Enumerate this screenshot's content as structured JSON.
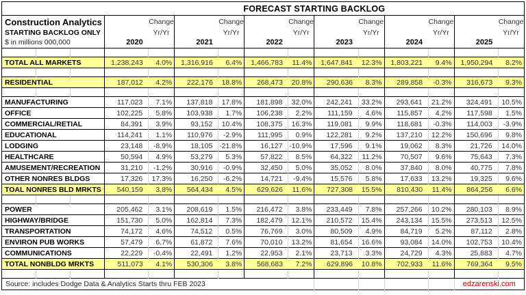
{
  "header": {
    "corner_line1": "Construction Analytics",
    "corner_line2": "STARTING BACKLOG ONLY",
    "corner_line3": "$ in millions 000,000",
    "change_label": "Change",
    "yryr_label": "Yr/Yr"
  },
  "footer": {
    "source": "Source: includes Dodge Data & Analytics Starts thru FEB 2023",
    "site": "edzarenski.com"
  },
  "colors": {
    "highlight": "#FFFF99",
    "site_text": "#C00000",
    "gridline": "#D4D4D4",
    "border": "#000000"
  },
  "chart_data": {
    "type": "table",
    "title": "FORECAST STARTING BACKLOG",
    "units": "$ in millions 000,000",
    "years": [
      "2020",
      "2021",
      "2022",
      "2023",
      "2024",
      "2025"
    ],
    "column_pattern_per_year": [
      "starting backlog",
      "Change Yr/Yr"
    ],
    "rows": [
      {
        "type": "spacer"
      },
      {
        "label": "TOTAL ALL MARKETS",
        "highlight": true,
        "cells": [
          "1,238,243",
          "4.0%",
          "1,316,916",
          "6.4%",
          "1,466,783",
          "11.4%",
          "1,647,841",
          "12.3%",
          "1,803,221",
          "9.4%",
          "1,950,294",
          "8.2%"
        ]
      },
      {
        "type": "spacer"
      },
      {
        "label": "RESIDENTIAL",
        "highlight": true,
        "cells": [
          "187,012",
          "4.2%",
          "222,176",
          "18.8%",
          "268,473",
          "20.8%",
          "290,636",
          "8.3%",
          "289,858",
          "-0.3%",
          "316,673",
          "9.3%"
        ]
      },
      {
        "type": "spacer"
      },
      {
        "label": "MANUFACTURING",
        "highlight": false,
        "cells": [
          "117,023",
          "7.1%",
          "137,818",
          "17.8%",
          "181,898",
          "32.0%",
          "242,241",
          "33.2%",
          "293,641",
          "21.2%",
          "324,491",
          "10.5%"
        ]
      },
      {
        "label": "OFFICE",
        "highlight": false,
        "cells": [
          "102,225",
          "5.8%",
          "103,938",
          "1.7%",
          "106,238",
          "2.2%",
          "111,159",
          "4.6%",
          "115,857",
          "4.2%",
          "117,598",
          "1.5%"
        ]
      },
      {
        "label": "COMMERCIAL/RETIAL",
        "highlight": false,
        "cells": [
          "84,391",
          "3.9%",
          "93,152",
          "10.4%",
          "108,375",
          "16.3%",
          "119,081",
          "9.9%",
          "118,681",
          "-0.3%",
          "114,003",
          "-3.9%"
        ]
      },
      {
        "label": "EDUCATIONAL",
        "highlight": false,
        "cells": [
          "114,241",
          "1.1%",
          "110,976",
          "-2.9%",
          "111,995",
          "0.9%",
          "122,281",
          "9.2%",
          "137,210",
          "12.2%",
          "150,696",
          "9.8%"
        ]
      },
      {
        "label": "LODGING",
        "highlight": false,
        "cells": [
          "23,148",
          "-8.9%",
          "18,105",
          "-21.8%",
          "16,127",
          "-10.9%",
          "17,596",
          "9.1%",
          "19,062",
          "8.3%",
          "21,726",
          "14.0%"
        ]
      },
      {
        "label": "HEALTHCARE",
        "highlight": false,
        "cells": [
          "50,594",
          "4.9%",
          "53,279",
          "5.3%",
          "57,822",
          "8.5%",
          "64,322",
          "11.2%",
          "70,507",
          "9.6%",
          "75,643",
          "7.3%"
        ]
      },
      {
        "label": "AMUSEMENT/RECREATION",
        "highlight": false,
        "cells": [
          "31,210",
          "-1.2%",
          "30,916",
          "-0.9%",
          "32,450",
          "5.0%",
          "35,052",
          "8.0%",
          "37,840",
          "8.0%",
          "40,775",
          "7.8%"
        ]
      },
      {
        "label": "OTHER NONRES BLDGS",
        "highlight": false,
        "cells": [
          "17,326",
          "17.3%",
          "16,250",
          "-6.2%",
          "14,721",
          "-9.4%",
          "15,576",
          "5.8%",
          "17,633",
          "13.2%",
          "19,325",
          "9.6%"
        ]
      },
      {
        "label": "TOAL NONRES BLD MRKTS",
        "highlight": true,
        "cells": [
          "540,159",
          "3.8%",
          "564,434",
          "4.5%",
          "629,626",
          "11.6%",
          "727,308",
          "15.5%",
          "810,430",
          "11.4%",
          "864,256",
          "6.6%"
        ]
      },
      {
        "type": "spacer"
      },
      {
        "label": "POWER",
        "highlight": false,
        "cells": [
          "205,462",
          "3.1%",
          "208,619",
          "1.5%",
          "216,472",
          "3.8%",
          "233,449",
          "7.8%",
          "257,266",
          "10.2%",
          "280,103",
          "8.9%"
        ]
      },
      {
        "label": "HIGHWAY/BRIDGE",
        "highlight": false,
        "cells": [
          "151,730",
          "5.0%",
          "162,814",
          "7.3%",
          "182,479",
          "12.1%",
          "210,572",
          "15.4%",
          "243,134",
          "15.5%",
          "273,513",
          "12.5%"
        ]
      },
      {
        "label": "TRANSPORTATION",
        "highlight": false,
        "cells": [
          "74,172",
          "4.6%",
          "74,512",
          "0.5%",
          "76,769",
          "3.0%",
          "80,509",
          "4.9%",
          "84,719",
          "5.2%",
          "87,112",
          "2.8%"
        ]
      },
      {
        "label": "ENVIRON PUB WORKS",
        "highlight": false,
        "cells": [
          "57,479",
          "6.7%",
          "61,872",
          "7.6%",
          "70,010",
          "13.2%",
          "81,654",
          "16.6%",
          "93,084",
          "14.0%",
          "102,753",
          "10.4%"
        ]
      },
      {
        "label": "COMMUNICATIONS",
        "highlight": false,
        "cells": [
          "22,229",
          "-0.4%",
          "22,491",
          "1.2%",
          "22,953",
          "2.1%",
          "23,713",
          "3.3%",
          "24,729",
          "4.3%",
          "25,883",
          "4.7%"
        ]
      },
      {
        "label": "TOTAL NONBLDG MRKTS",
        "highlight": true,
        "cells": [
          "511,073",
          "4.1%",
          "530,306",
          "3.8%",
          "568,683",
          "7.2%",
          "629,896",
          "10.8%",
          "702,933",
          "11.6%",
          "769,364",
          "9.5%"
        ]
      },
      {
        "type": "spacer"
      }
    ]
  }
}
